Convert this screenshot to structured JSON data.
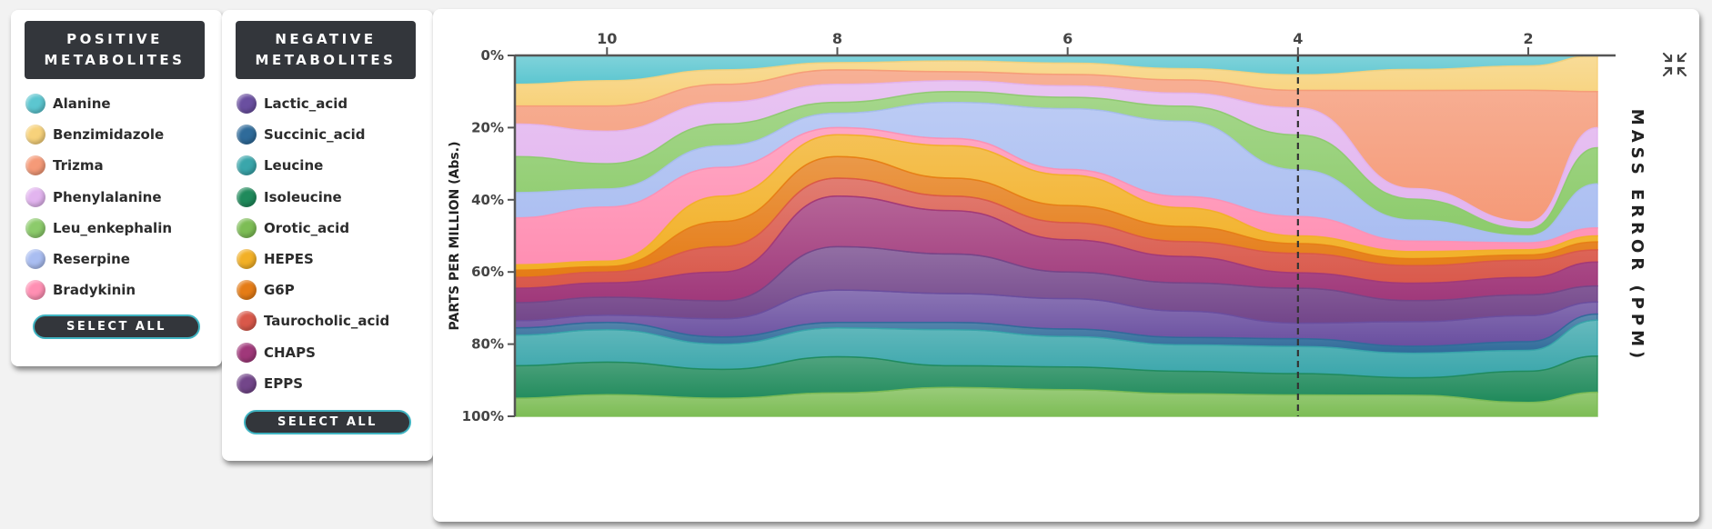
{
  "positive_panel": {
    "title_lines": [
      "POSITIVE",
      "METABOLITES"
    ],
    "items": [
      {
        "label": "Alanine",
        "color": "#5cc6d0"
      },
      {
        "label": "Benzimidazole",
        "color": "#f7d27b"
      },
      {
        "label": "Trizma",
        "color": "#f59a78"
      },
      {
        "label": "Phenylalanine",
        "color": "#e2b4ef"
      },
      {
        "label": "Leu_enkephalin",
        "color": "#8ccb6b"
      },
      {
        "label": "Reserpine",
        "color": "#a9bdf1"
      },
      {
        "label": "Bradykinin",
        "color": "#ff8fb3"
      }
    ],
    "select_all_label": "SELECT ALL"
  },
  "negative_panel": {
    "title_lines": [
      "NEGATIVE",
      "METABOLITES"
    ],
    "items": [
      {
        "label": "Lactic_acid",
        "color": "#6a4fa0"
      },
      {
        "label": "Succinic_acid",
        "color": "#2f6b9a"
      },
      {
        "label": "Leucine",
        "color": "#3aa6ab"
      },
      {
        "label": "Isoleucine",
        "color": "#1f8a5b"
      },
      {
        "label": "Orotic_acid",
        "color": "#7dbd55"
      },
      {
        "label": "HEPES",
        "color": "#f2b026"
      },
      {
        "label": "G6P",
        "color": "#e57c16"
      },
      {
        "label": "Taurocholic_acid",
        "color": "#d9584a"
      },
      {
        "label": "CHAPS",
        "color": "#a0387a"
      },
      {
        "label": "EPPS",
        "color": "#73468a"
      }
    ],
    "select_all_label": "SELECT ALL"
  },
  "chart_data": {
    "type": "area",
    "stacking": "percent",
    "x": [
      10.8,
      10,
      9,
      8,
      7,
      6,
      5,
      4,
      3,
      2,
      1.4
    ],
    "x_ticks": [
      10,
      8,
      6,
      4,
      2
    ],
    "x_tick_labels": [
      "10",
      "8",
      "6",
      "4",
      "2"
    ],
    "xlim": [
      10.8,
      1.4
    ],
    "x_axis_position": "top",
    "x_reversed": true,
    "ylim": [
      0,
      100
    ],
    "y_ticks": [
      0,
      20,
      40,
      60,
      80,
      100
    ],
    "y_tick_labels": [
      "0%",
      "20%",
      "40%",
      "60%",
      "80%",
      "100%"
    ],
    "ylabel": "PARTS PER MILLION (Abs.)",
    "right_label": "MASS ERROR (PPM)",
    "reference_line_x": 4,
    "grid": false,
    "series": [
      {
        "name": "Alanine",
        "color": "#5cc6d0",
        "values": [
          8.0,
          7.0,
          4.0,
          2.0,
          1.5,
          2.0,
          3.5,
          5.0,
          4.0,
          3.0,
          0
        ]
      },
      {
        "name": "Benzimidazole",
        "color": "#f7d27b",
        "values": [
          6.0,
          7.0,
          4.0,
          2.0,
          3.0,
          3.0,
          3.0,
          4.0,
          6.0,
          7.0,
          9.0
        ]
      },
      {
        "name": "Trizma",
        "color": "#f59a78",
        "values": [
          5.0,
          7.0,
          5.0,
          4.0,
          2.5,
          3.0,
          3.5,
          4.5,
          28.0,
          38.0,
          9.0
        ]
      },
      {
        "name": "Phenylalanine",
        "color": "#e2b4ef",
        "values": [
          9.0,
          9.0,
          6.0,
          5.0,
          3.0,
          3.0,
          3.5,
          7.0,
          3.0,
          2.0,
          5.0
        ]
      },
      {
        "name": "Leu_enkephalin",
        "color": "#8ccb6b",
        "values": [
          10.0,
          7.0,
          6.0,
          3.0,
          3.0,
          3.0,
          4.0,
          9.0,
          6.0,
          2.0,
          9.0
        ]
      },
      {
        "name": "Reserpine",
        "color": "#a9bdf1",
        "values": [
          7.0,
          5.0,
          6.0,
          4.0,
          10.0,
          16.0,
          20.0,
          12.0,
          6.0,
          2.0,
          11.0
        ]
      },
      {
        "name": "Bradykinin",
        "color": "#ff8fb3",
        "values": [
          13.0,
          15.0,
          8.0,
          2.0,
          2.0,
          1.5,
          3.0,
          5.0,
          3.0,
          2.0,
          2.0
        ]
      },
      {
        "name": "HEPES",
        "color": "#f2b026",
        "values": [
          1.5,
          1.5,
          7.0,
          6.0,
          9.0,
          8.0,
          5.0,
          2.0,
          2.0,
          1.5,
          1.5
        ]
      },
      {
        "name": "G6P",
        "color": "#e57c16",
        "values": [
          2.0,
          1.5,
          7.0,
          6.0,
          5.0,
          4.5,
          4.0,
          2.5,
          2.0,
          1.5,
          2.0
        ]
      },
      {
        "name": "Taurocholic_acid",
        "color": "#d9584a",
        "values": [
          3.0,
          3.0,
          7.0,
          5.0,
          4.0,
          4.5,
          4.0,
          5.0,
          5.0,
          5.0,
          3.0
        ]
      },
      {
        "name": "CHAPS",
        "color": "#a0387a",
        "values": [
          4.0,
          4.0,
          8.0,
          14.0,
          12.0,
          8.5,
          7.0,
          4.0,
          5.0,
          5.0,
          6.0
        ]
      },
      {
        "name": "EPPS",
        "color": "#73468a",
        "values": [
          5.0,
          5.0,
          5.0,
          12.0,
          11.0,
          7.0,
          7.5,
          9.0,
          6.0,
          6.0,
          4.0
        ]
      },
      {
        "name": "Lactic_acid",
        "color": "#6a4fa0",
        "values": [
          2.0,
          2.0,
          5.0,
          9.0,
          8.0,
          8.0,
          7.0,
          4.0,
          7.0,
          7.5,
          3.0
        ]
      },
      {
        "name": "Succinic_acid",
        "color": "#2f6b9a",
        "values": [
          2.0,
          2.0,
          2.0,
          1.5,
          2.0,
          2.0,
          2.0,
          2.0,
          2.0,
          2.5,
          1.5
        ]
      },
      {
        "name": "Leucine",
        "color": "#3aa6ab",
        "values": [
          8.5,
          9.0,
          7.0,
          8.0,
          10.0,
          8.0,
          7.0,
          7.0,
          7.0,
          6.0,
          9.0
        ]
      },
      {
        "name": "Isoleucine",
        "color": "#1f8a5b",
        "values": [
          9.0,
          9.0,
          8.0,
          10.0,
          6.0,
          6.0,
          6.0,
          5.5,
          5.0,
          9.0,
          9.0
        ]
      },
      {
        "name": "Orotic_acid",
        "color": "#7dbd55",
        "values": [
          5.0,
          6.0,
          5.0,
          6.5,
          8.0,
          7.0,
          6.0,
          5.5,
          6.0,
          4.0,
          6.0
        ]
      }
    ]
  },
  "controls": {
    "collapse_icon": "collapse-arrows-icon"
  }
}
